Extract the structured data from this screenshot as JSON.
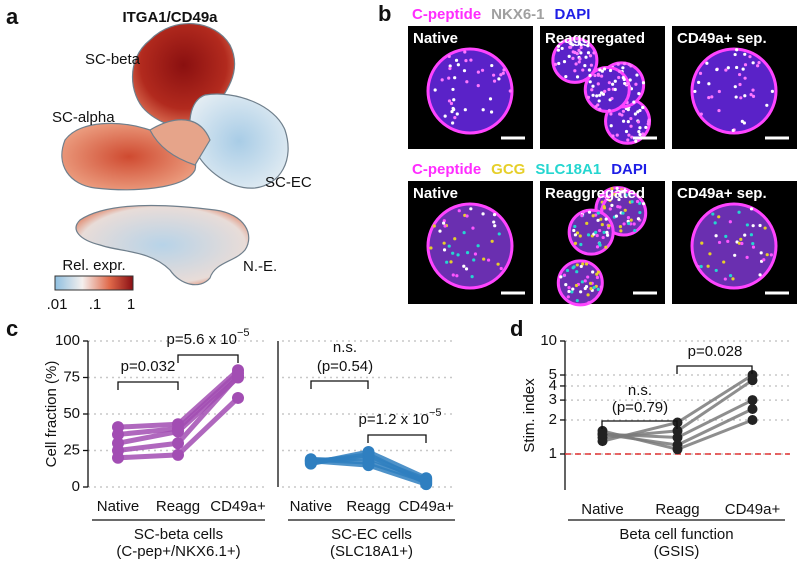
{
  "panel_labels": [
    "a",
    "b",
    "c",
    "d"
  ],
  "umap": {
    "title": "ITGA1/CD49a",
    "clusters": [
      "SC-beta",
      "SC-alpha",
      "SC-EC",
      "N.-E."
    ],
    "colorbar": {
      "label": "Rel. expr.",
      "ticks": [
        ".01",
        ".1",
        "1"
      ]
    }
  },
  "microscopy": {
    "rows": [
      {
        "channels": [
          {
            "name": "C-peptide",
            "color": "#ff2cff"
          },
          {
            "name": "NKX6-1",
            "color": "#a0a0a0"
          },
          {
            "name": "DAPI",
            "color": "#1e1ee6"
          }
        ],
        "images": [
          "Native",
          "Reaggregated",
          "CD49a+ sep."
        ]
      },
      {
        "channels": [
          {
            "name": "C-peptide",
            "color": "#ff2cff"
          },
          {
            "name": "GCG",
            "color": "#e6cf2a"
          },
          {
            "name": "SLC18A1",
            "color": "#25d6d0"
          },
          {
            "name": "DAPI",
            "color": "#1e1ee6"
          }
        ],
        "images": [
          "Native",
          "Reaggregated",
          "CD49a+ sep."
        ]
      }
    ]
  },
  "chart_data": [
    {
      "type": "line",
      "ylabel": "Cell fraction (%)",
      "categories": [
        "Native",
        "Reagg",
        "CD49a+"
      ],
      "xlabel": [
        "SC-beta cells",
        "(C-pep+/NKX6.1+)"
      ],
      "ylim": [
        0,
        100
      ],
      "yticks": [
        0,
        25,
        50,
        75,
        100
      ],
      "grid": true,
      "series": [
        {
          "color": "#a24db3",
          "values": [
            41,
            43,
            80
          ]
        },
        {
          "color": "#a24db3",
          "values": [
            36,
            40,
            78
          ]
        },
        {
          "color": "#a24db3",
          "values": [
            30,
            38,
            75
          ]
        },
        {
          "color": "#a24db3",
          "values": [
            25,
            30,
            76
          ]
        },
        {
          "color": "#a24db3",
          "values": [
            20,
            22,
            61
          ]
        }
      ],
      "annotations": [
        {
          "text": "p=0.032"
        },
        {
          "text": "p=5.6 x 10",
          "exponent": "−5"
        }
      ]
    },
    {
      "type": "line",
      "categories": [
        "Native",
        "Reagg",
        "CD49a+"
      ],
      "xlabel": [
        "SC-EC cells",
        "(SLC18A1+)"
      ],
      "ylim": [
        0,
        100
      ],
      "yticks": [
        0,
        25,
        50,
        75,
        100
      ],
      "grid": true,
      "series": [
        {
          "color": "#2f7fc0",
          "values": [
            18,
            20,
            5
          ]
        },
        {
          "color": "#2f7fc0",
          "values": [
            17,
            22,
            3
          ]
        },
        {
          "color": "#2f7fc0",
          "values": [
            16,
            24,
            6
          ]
        },
        {
          "color": "#2f7fc0",
          "values": [
            19,
            17,
            4
          ]
        },
        {
          "color": "#2f7fc0",
          "values": [
            18,
            15,
            2
          ]
        }
      ],
      "annotations": [
        {
          "text": "n.s."
        },
        {
          "text": "(p=0.54)"
        },
        {
          "text": "p=1.2 x 10",
          "exponent": "−5"
        }
      ]
    },
    {
      "type": "line",
      "ylabel": "Stim. index",
      "categories": [
        "Native",
        "Reagg",
        "CD49a+"
      ],
      "xlabel": [
        "Beta cell function",
        "(GSIS)"
      ],
      "log_scale": true,
      "ylim": [
        0.48,
        10
      ],
      "yticks": [
        1,
        2,
        3,
        4,
        5,
        10
      ],
      "grid": true,
      "reference_line": 1,
      "reference_color": "#e03333",
      "series": [
        {
          "color": "#7a7a7a",
          "values": [
            1.3,
            1.9,
            5
          ]
        },
        {
          "color": "#7a7a7a",
          "values": [
            1.4,
            1.6,
            4.5
          ]
        },
        {
          "color": "#7a7a7a",
          "values": [
            1.5,
            1.4,
            3
          ]
        },
        {
          "color": "#7a7a7a",
          "values": [
            1.5,
            1.2,
            2.5
          ]
        },
        {
          "color": "#7a7a7a",
          "values": [
            1.6,
            1.1,
            2
          ]
        }
      ],
      "annotations": [
        {
          "text": "n.s."
        },
        {
          "text": "(p=0.79)"
        },
        {
          "text": "p=0.028"
        }
      ]
    }
  ]
}
